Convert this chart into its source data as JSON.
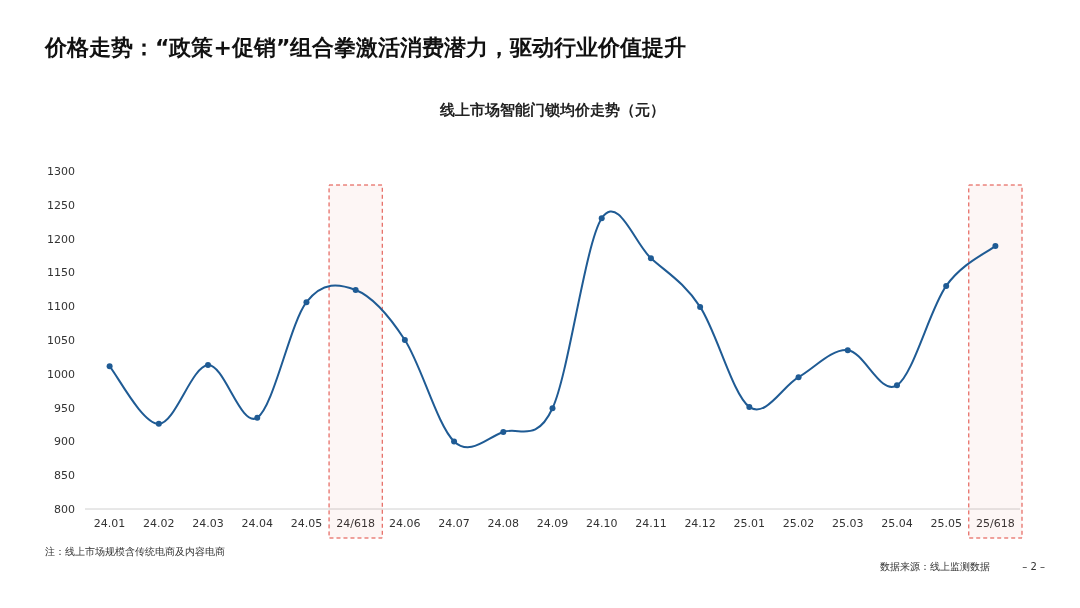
{
  "chart_data": {
    "type": "line",
    "title": "价格走势：“政策+促销”组合拳激活消费潜力，驱动行业价值提升",
    "subtitle": "线上市场智能门锁均价走势（元）",
    "categories": [
      "24.01",
      "24.02",
      "24.03",
      "24.04",
      "24.05",
      "24/618",
      "24.06",
      "24.07",
      "24.08",
      "24.09",
      "24.10",
      "24.11",
      "24.12",
      "25.01",
      "25.02",
      "25.03",
      "25.04",
      "25.05",
      "25/618"
    ],
    "series": [
      {
        "color": "#1f5b94",
        "values": [
          1011,
          926,
          1013,
          935,
          1106,
          1124,
          1050,
          900,
          914,
          949,
          1230,
          1171,
          1099,
          951,
          995,
          1035,
          983,
          1130,
          1189
        ]
      }
    ],
    "ylim": [
      800,
      1300
    ],
    "yticks": [
      800,
      850,
      900,
      950,
      1000,
      1050,
      1100,
      1150,
      1200,
      1250,
      1300
    ],
    "marker": "circle",
    "grid": false,
    "bands": [
      {
        "axis": "x",
        "from": "24/618",
        "to": "24/618",
        "color": "#e0463c"
      },
      {
        "axis": "x",
        "from": "25/618",
        "to": "25/618",
        "color": "#e0463c"
      }
    ],
    "annotations": [
      "注：线上市场规模含传统电商及内容电商",
      "数据来源：线上监测数据",
      "– 2 –"
    ]
  }
}
